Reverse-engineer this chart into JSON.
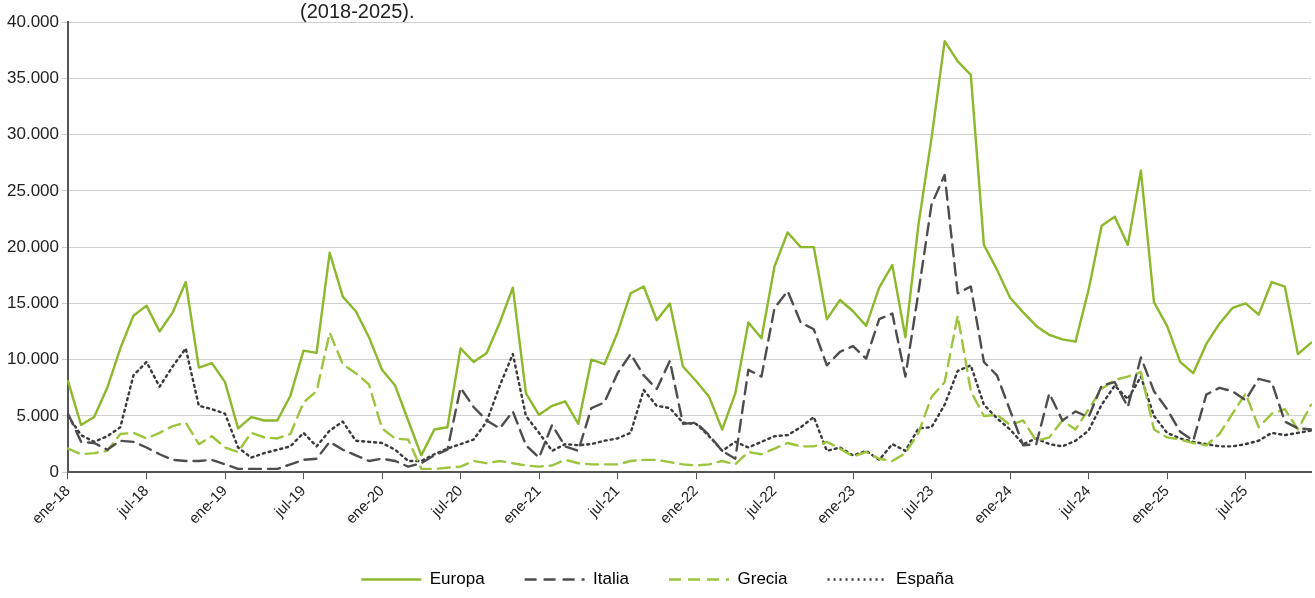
{
  "chart_data": {
    "type": "line",
    "title": "(2018-2025).",
    "categories": [
      "ene-18",
      null,
      null,
      null,
      null,
      null,
      "jul-18",
      null,
      null,
      null,
      null,
      null,
      "ene-19",
      null,
      null,
      null,
      null,
      null,
      "jul-19",
      null,
      null,
      null,
      null,
      null,
      "ene-20",
      null,
      null,
      null,
      null,
      null,
      "jul-20",
      null,
      null,
      null,
      null,
      null,
      "ene-21",
      null,
      null,
      null,
      null,
      null,
      "jul-21",
      null,
      null,
      null,
      null,
      null,
      "ene-22",
      null,
      null,
      null,
      null,
      null,
      "jul-22",
      null,
      null,
      null,
      null,
      null,
      "ene-23",
      null,
      null,
      null,
      null,
      null,
      "jul-23",
      null,
      null,
      null,
      null,
      null,
      "ene-24",
      null,
      null,
      null,
      null,
      null,
      "jul-24",
      null,
      null,
      null,
      null,
      null,
      "ene-25",
      null,
      null,
      null,
      null,
      null,
      "jul-25",
      null,
      null,
      null,
      null,
      null
    ],
    "series": [
      {
        "name": "Europa",
        "color": "#8cb82b",
        "line_style": "solid",
        "values": [
          8100,
          4200,
          4900,
          7500,
          11000,
          13900,
          14800,
          12500,
          14200,
          16900,
          9300,
          9700,
          8000,
          3900,
          4900,
          4600,
          4600,
          6800,
          10800,
          10600,
          19500,
          15600,
          14300,
          12000,
          9100,
          7700,
          4600,
          1500,
          3800,
          4000,
          11000,
          9800,
          10600,
          13300,
          16400,
          7000,
          5100,
          5900,
          6300,
          4300,
          10000,
          9600,
          12400,
          15900,
          16500,
          13500,
          15000,
          9400,
          8100,
          6700,
          3800,
          7000,
          13300,
          11900,
          18300,
          21300,
          20000,
          20000,
          13600,
          15300,
          14300,
          13000,
          16400,
          18400,
          12000,
          22000,
          29700,
          38300,
          36500,
          35300,
          20200,
          18000,
          15500,
          14200,
          13000,
          12200,
          11800,
          11600,
          16200,
          21900,
          22700,
          20200,
          26800,
          15100,
          13000,
          9800,
          8800,
          11400,
          13200,
          14600,
          15000,
          14000,
          16900,
          16500,
          10500,
          11500
        ]
      },
      {
        "name": "Italia",
        "color": "#4d4d4d",
        "line_style": "dashed",
        "values": [
          5200,
          2700,
          2600,
          2000,
          2800,
          2700,
          2200,
          1600,
          1100,
          1000,
          1000,
          1100,
          700,
          300,
          300,
          300,
          300,
          700,
          1100,
          1200,
          2700,
          2000,
          1500,
          1000,
          1200,
          1000,
          500,
          800,
          1500,
          2000,
          7500,
          5800,
          4600,
          3900,
          5400,
          2400,
          1300,
          4200,
          2300,
          1900,
          5700,
          6200,
          8800,
          10500,
          8600,
          7400,
          9900,
          4300,
          4400,
          3300,
          1900,
          1200,
          9100,
          8500,
          14600,
          16100,
          13300,
          12700,
          9500,
          10700,
          11200,
          10100,
          13600,
          14100,
          8500,
          16000,
          23800,
          26400,
          15900,
          16500,
          9800,
          8600,
          5500,
          2400,
          2500,
          7000,
          4600,
          5400,
          4900,
          7700,
          8000,
          5800,
          10200,
          7200,
          5600,
          3600,
          2800,
          6900,
          7500,
          7200,
          6400,
          8300,
          8000,
          4500,
          3900,
          3800
        ]
      },
      {
        "name": "Grecia",
        "color": "#9cc43c",
        "line_style": "dashed",
        "values": [
          2100,
          1600,
          1700,
          1900,
          3400,
          3500,
          3000,
          3500,
          4100,
          4400,
          2500,
          3200,
          2200,
          1800,
          3500,
          3100,
          3000,
          3400,
          6200,
          7200,
          12400,
          9600,
          8800,
          7800,
          3900,
          3000,
          2900,
          300,
          300,
          400,
          500,
          1000,
          800,
          1000,
          800,
          600,
          500,
          600,
          1100,
          800,
          700,
          700,
          700,
          1000,
          1100,
          1100,
          900,
          700,
          600,
          700,
          1000,
          700,
          1800,
          1600,
          2100,
          2600,
          2300,
          2300,
          2700,
          2100,
          1400,
          1800,
          1200,
          1000,
          1700,
          3500,
          6700,
          8000,
          13900,
          7200,
          5000,
          5100,
          4200,
          4600,
          2800,
          3100,
          4600,
          3800,
          5600,
          7400,
          8200,
          8500,
          8900,
          3800,
          3100,
          2900,
          2600,
          2400,
          3400,
          5200,
          7000,
          4000,
          5200,
          5600,
          3800,
          6000
        ]
      },
      {
        "name": "España",
        "color": "#3a3a3a",
        "line_style": "dotted",
        "values": [
          5000,
          3300,
          2700,
          3200,
          4000,
          8600,
          9800,
          7600,
          9400,
          11000,
          5900,
          5600,
          5200,
          2200,
          1300,
          1700,
          2000,
          2300,
          3500,
          2300,
          3700,
          4500,
          2800,
          2700,
          2600,
          2000,
          1000,
          1000,
          1600,
          2100,
          2500,
          2900,
          4500,
          7700,
          10500,
          5000,
          3500,
          1900,
          2500,
          2400,
          2500,
          2800,
          3000,
          3500,
          7300,
          5900,
          5700,
          4400,
          4300,
          3200,
          1900,
          2700,
          2200,
          2700,
          3200,
          3300,
          4000,
          4900,
          1900,
          2200,
          1500,
          1900,
          1100,
          2500,
          1900,
          3900,
          4000,
          6000,
          9000,
          9500,
          6000,
          4800,
          3800,
          2500,
          3000,
          2500,
          2300,
          2800,
          3700,
          6000,
          7700,
          6500,
          8500,
          5000,
          3500,
          3000,
          2700,
          2500,
          2300,
          2300,
          2500,
          2800,
          3500,
          3300,
          3500,
          3700
        ]
      }
    ],
    "ylim": [
      0,
      40000
    ],
    "yticks": [
      {
        "value": 0,
        "label": "0"
      },
      {
        "value": 5000,
        "label": "5.000"
      },
      {
        "value": 10000,
        "label": "10.000"
      },
      {
        "value": 15000,
        "label": "15.000"
      },
      {
        "value": 20000,
        "label": "20.000"
      },
      {
        "value": 25000,
        "label": "25.000"
      },
      {
        "value": 30000,
        "label": "30.000"
      },
      {
        "value": 35000,
        "label": "35.000"
      },
      {
        "value": 40000,
        "label": "40.000"
      }
    ],
    "grid": "y",
    "legend": "bottom",
    "marker": "none"
  }
}
